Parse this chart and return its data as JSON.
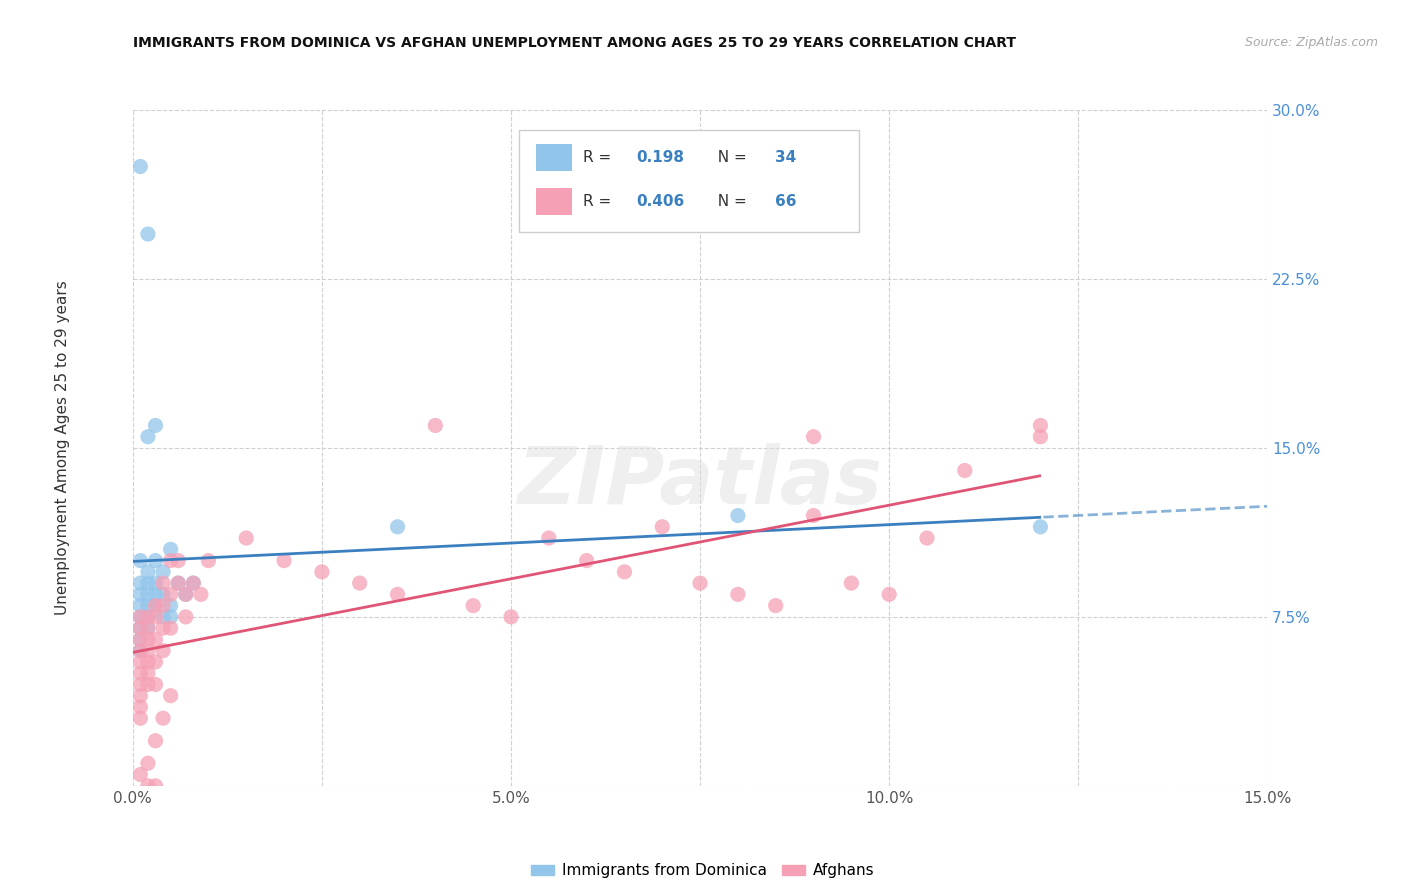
{
  "title": "IMMIGRANTS FROM DOMINICA VS AFGHAN UNEMPLOYMENT AMONG AGES 25 TO 29 YEARS CORRELATION CHART",
  "source": "Source: ZipAtlas.com",
  "ylabel": "Unemployment Among Ages 25 to 29 years",
  "xlim": [
    0,
    0.15
  ],
  "ylim": [
    0,
    0.3
  ],
  "xticks": [
    0.0,
    0.025,
    0.05,
    0.075,
    0.1,
    0.125,
    0.15
  ],
  "xtick_labels": [
    "0.0%",
    "",
    "5.0%",
    "",
    "10.0%",
    "",
    "15.0%"
  ],
  "ytick_labels": [
    "",
    "7.5%",
    "15.0%",
    "22.5%",
    "30.0%"
  ],
  "yticks": [
    0.0,
    0.075,
    0.15,
    0.225,
    0.3
  ],
  "blue_color": "#92C5EA",
  "pink_color": "#F5A0B5",
  "blue_line_color": "#3A80C0",
  "pink_line_color": "#E05575",
  "watermark": "ZIPatlas",
  "blue_R": "0.198",
  "blue_N": "34",
  "pink_R": "0.406",
  "pink_N": "66",
  "dominica_label": "Immigrants from Dominica",
  "afghan_label": "Afghans",
  "blue_x": [
    0.001,
    0.001,
    0.001,
    0.001,
    0.001,
    0.001,
    0.001,
    0.001,
    0.002,
    0.002,
    0.002,
    0.002,
    0.002,
    0.002,
    0.003,
    0.003,
    0.003,
    0.003,
    0.004,
    0.004,
    0.004,
    0.005,
    0.005,
    0.006,
    0.007,
    0.008,
    0.001,
    0.002,
    0.003,
    0.002,
    0.035,
    0.08,
    0.12,
    0.005
  ],
  "blue_y": [
    0.1,
    0.09,
    0.085,
    0.08,
    0.075,
    0.07,
    0.065,
    0.06,
    0.095,
    0.09,
    0.085,
    0.08,
    0.075,
    0.07,
    0.1,
    0.09,
    0.085,
    0.08,
    0.095,
    0.085,
    0.075,
    0.08,
    0.075,
    0.09,
    0.085,
    0.09,
    0.275,
    0.245,
    0.16,
    0.155,
    0.115,
    0.12,
    0.115,
    0.105
  ],
  "pink_x": [
    0.001,
    0.001,
    0.001,
    0.001,
    0.001,
    0.001,
    0.001,
    0.001,
    0.001,
    0.001,
    0.002,
    0.002,
    0.002,
    0.002,
    0.002,
    0.002,
    0.002,
    0.003,
    0.003,
    0.003,
    0.003,
    0.003,
    0.004,
    0.004,
    0.004,
    0.004,
    0.005,
    0.005,
    0.005,
    0.006,
    0.006,
    0.007,
    0.007,
    0.008,
    0.009,
    0.01,
    0.015,
    0.02,
    0.025,
    0.03,
    0.035,
    0.04,
    0.045,
    0.05,
    0.055,
    0.06,
    0.065,
    0.07,
    0.075,
    0.08,
    0.085,
    0.09,
    0.095,
    0.1,
    0.105,
    0.11,
    0.12,
    0.001,
    0.002,
    0.003,
    0.004,
    0.005,
    0.002,
    0.003,
    0.09,
    0.12
  ],
  "pink_y": [
    0.075,
    0.07,
    0.065,
    0.06,
    0.055,
    0.05,
    0.045,
    0.04,
    0.035,
    0.03,
    0.075,
    0.07,
    0.065,
    0.06,
    0.055,
    0.05,
    0.045,
    0.08,
    0.075,
    0.065,
    0.055,
    0.045,
    0.09,
    0.08,
    0.07,
    0.06,
    0.1,
    0.085,
    0.07,
    0.1,
    0.09,
    0.085,
    0.075,
    0.09,
    0.085,
    0.1,
    0.11,
    0.1,
    0.095,
    0.09,
    0.085,
    0.16,
    0.08,
    0.075,
    0.11,
    0.1,
    0.095,
    0.115,
    0.09,
    0.085,
    0.08,
    0.12,
    0.09,
    0.085,
    0.11,
    0.14,
    0.155,
    0.005,
    0.01,
    0.02,
    0.03,
    0.04,
    0.0,
    0.0,
    0.155,
    0.16
  ]
}
